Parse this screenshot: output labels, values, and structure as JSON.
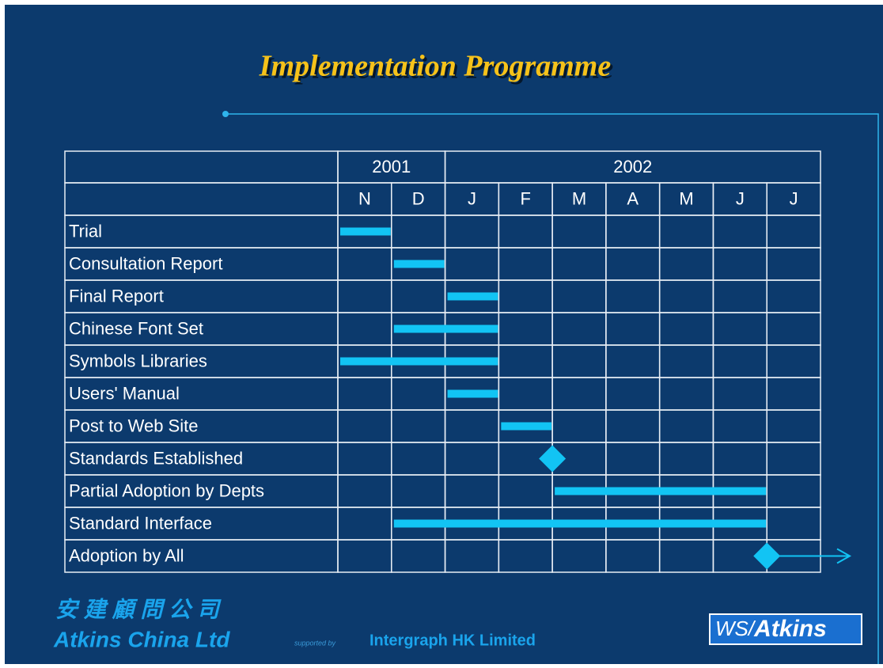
{
  "chart_data": {
    "type": "gantt",
    "title": "Implementation Programme",
    "years": [
      "2001",
      "2002"
    ],
    "categories": [
      "N",
      "D",
      "J",
      "F",
      "M",
      "A",
      "M",
      "J",
      "J"
    ],
    "xlim": [
      0,
      9
    ],
    "color": "#12c4f4",
    "tasks": [
      {
        "name": "Trial",
        "start": 0,
        "end": 1
      },
      {
        "name": "Consultation Report",
        "start": 1,
        "end": 2
      },
      {
        "name": "Final Report",
        "start": 2,
        "end": 3
      },
      {
        "name": "Chinese Font Set",
        "start": 1,
        "end": 3
      },
      {
        "name": "Symbols Libraries",
        "start": 0,
        "end": 3
      },
      {
        "name": "Users' Manual",
        "start": 2,
        "end": 3
      },
      {
        "name": "Post to Web Site",
        "start": 3,
        "end": 4
      },
      {
        "name": "Standards Established",
        "milestone": 4
      },
      {
        "name": "Partial Adoption by Depts",
        "start": 4,
        "end": 8
      },
      {
        "name": "Standard Interface",
        "start": 1,
        "end": 8
      },
      {
        "name": "Adoption by All",
        "milestone": 8,
        "continues": true
      }
    ]
  },
  "footer": {
    "chinese_name": "安 建 顧 問 公 司",
    "company": "Atkins China Ltd",
    "supported_by": "supported by",
    "partner": "Intergraph HK Limited",
    "logo": {
      "prefix": "WS/",
      "name": "Atkins"
    }
  }
}
